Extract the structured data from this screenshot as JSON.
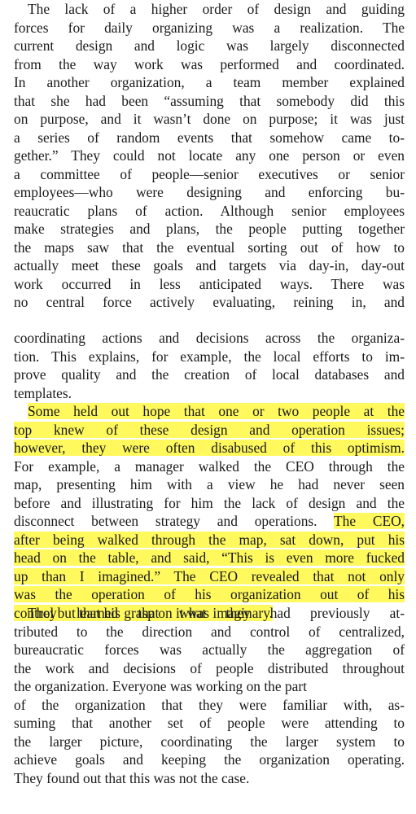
{
  "paragraphs": [
    {
      "lines": [
        {
          "indent": true,
          "segments": [
            {
              "text": "The lack of a higher order of design and guiding",
              "hl": false
            }
          ]
        },
        {
          "segments": [
            {
              "text": "forces for daily organizing was a realization. The",
              "hl": false
            }
          ]
        },
        {
          "segments": [
            {
              "text": "current design and logic was largely disconnected",
              "hl": false
            }
          ]
        },
        {
          "segments": [
            {
              "text": "from the way work was performed and coordinated.",
              "hl": false
            }
          ]
        },
        {
          "segments": [
            {
              "text": "In another organization, a team member explained",
              "hl": false
            }
          ]
        },
        {
          "segments": [
            {
              "text": "that she had been “assuming that somebody did this",
              "hl": false
            }
          ]
        },
        {
          "segments": [
            {
              "text": "on purpose, and it wasn’t done on purpose; it was just",
              "hl": false
            }
          ]
        },
        {
          "segments": [
            {
              "text": "a series of random events that somehow came to-",
              "hl": false
            }
          ]
        },
        {
          "segments": [
            {
              "text": "gether.” They could not locate any one person or even",
              "hl": false
            }
          ]
        },
        {
          "segments": [
            {
              "text": "a committee of people—senior executives or senior",
              "hl": false
            }
          ]
        },
        {
          "segments": [
            {
              "text": "employees—who were designing and enforcing bu-",
              "hl": false
            }
          ]
        },
        {
          "segments": [
            {
              "text": "reaucratic plans of action. Although senior employees",
              "hl": false
            }
          ]
        },
        {
          "segments": [
            {
              "text": "make strategies and plans, the people putting together",
              "hl": false
            }
          ]
        },
        {
          "segments": [
            {
              "text": "the maps saw that the eventual sorting out of how to",
              "hl": false
            }
          ]
        },
        {
          "segments": [
            {
              "text": "actually meet these goals and targets via day-in, day-out",
              "hl": false
            }
          ]
        },
        {
          "segments": [
            {
              "text": "work occurred in less anticipated ways. There was",
              "hl": false
            }
          ]
        },
        {
          "segments": [
            {
              "text": "no central force actively evaluating, reining in, and",
              "hl": false
            }
          ]
        }
      ]
    },
    {
      "lines": [
        {
          "segments": [
            {
              "text": "coordinating actions and decisions across the organiza-",
              "hl": false
            }
          ]
        },
        {
          "segments": [
            {
              "text": "tion. This explains, for example, the local efforts to im-",
              "hl": false
            }
          ]
        },
        {
          "segments": [
            {
              "text": "prove quality and the creation of local databases and",
              "hl": false
            }
          ]
        },
        {
          "last": true,
          "segments": [
            {
              "text": "templates.",
              "hl": false
            }
          ]
        },
        {
          "indent": true,
          "segments": [
            {
              "text": "Some held out hope that one or two people at the",
              "hl": true
            }
          ]
        },
        {
          "segments": [
            {
              "text": "top knew of these design and operation issues;",
              "hl": true
            }
          ]
        },
        {
          "segments": [
            {
              "text": "however, they were often disabused of this optimism.",
              "hl": true
            }
          ]
        },
        {
          "segments": [
            {
              "text": "For example, a manager walked the CEO through the",
              "hl": false
            }
          ]
        },
        {
          "segments": [
            {
              "text": "map, presenting him with a view he had never seen",
              "hl": false
            }
          ]
        },
        {
          "segments": [
            {
              "text": "before and illustrating for him the lack of design and the",
              "hl": false
            }
          ]
        },
        {
          "segments": [
            {
              "text": "disconnect between strategy and operations. ",
              "hl": false
            },
            {
              "text": "The CEO,",
              "hl": true
            }
          ]
        },
        {
          "segments": [
            {
              "text": "after being walked through the map, sat down, put his",
              "hl": true
            }
          ]
        },
        {
          "segments": [
            {
              "text": "head on the table, and said, “This is even more fucked",
              "hl": true
            }
          ]
        },
        {
          "segments": [
            {
              "text": "up than I imagined.” The CEO revealed that not only",
              "hl": true
            }
          ]
        },
        {
          "segments": [
            {
              "text": "was the operation of his organization out of his",
              "hl": true
            }
          ]
        },
        {
          "last": true,
          "segments": [
            {
              "text": "control but that his grasp on it was imaginary.",
              "hl": true
            }
          ]
        }
      ]
    },
    {
      "lines": [
        {
          "indent": true,
          "segments": [
            {
              "text": "They learned that what they had previously at-",
              "hl": false
            }
          ]
        },
        {
          "segments": [
            {
              "text": "tributed to the direction and control of centralized,",
              "hl": false
            }
          ]
        },
        {
          "segments": [
            {
              "text": "bureaucratic forces was actually the aggregation of",
              "hl": false
            }
          ]
        },
        {
          "segments": [
            {
              "text": "the work and decisions of people distributed throughout",
              "hl": false
            }
          ]
        },
        {
          "last": true,
          "segments": [
            {
              "text": "the organization. Everyone was working on the part",
              "hl": false
            }
          ]
        },
        {
          "segments": [
            {
              "text": "of the organization that they were familiar with, as-",
              "hl": false
            }
          ]
        },
        {
          "segments": [
            {
              "text": "suming that another set of people were attending to",
              "hl": false
            }
          ]
        },
        {
          "segments": [
            {
              "text": "the larger picture, coordinating the larger system to",
              "hl": false
            }
          ]
        },
        {
          "segments": [
            {
              "text": "achieve goals and keeping the organization operating.",
              "hl": false
            }
          ]
        },
        {
          "last": true,
          "segments": [
            {
              "text": "They found out that this was not the case.",
              "hl": false
            }
          ]
        }
      ]
    }
  ]
}
